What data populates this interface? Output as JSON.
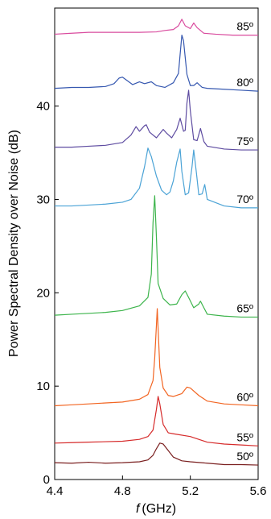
{
  "chart_data": {
    "type": "line",
    "title": "",
    "xlabel_var": "f",
    "xlabel_unit": "(GHz)",
    "ylabel": "Power Spectral Density over Noise (dB)",
    "xlim": [
      4.4,
      5.6
    ],
    "ylim": [
      0,
      50.5
    ],
    "xticks": [
      "4.4",
      "4.8",
      "5.2",
      "5.6"
    ],
    "yticks": [
      "0",
      "10",
      "20",
      "30",
      "40"
    ],
    "grid": false,
    "series": [
      {
        "name": "50º",
        "color": "#7a1f1f",
        "points": [
          [
            4.4,
            1.8
          ],
          [
            4.5,
            1.75
          ],
          [
            4.6,
            1.85
          ],
          [
            4.7,
            1.75
          ],
          [
            4.8,
            1.8
          ],
          [
            4.9,
            1.9
          ],
          [
            4.95,
            2.1
          ],
          [
            4.98,
            2.6
          ],
          [
            5.0,
            3.3
          ],
          [
            5.02,
            3.9
          ],
          [
            5.04,
            3.8
          ],
          [
            5.07,
            3.1
          ],
          [
            5.1,
            2.4
          ],
          [
            5.15,
            2.0
          ],
          [
            5.2,
            1.9
          ],
          [
            5.3,
            1.75
          ],
          [
            5.4,
            1.6
          ],
          [
            5.5,
            1.6
          ],
          [
            5.6,
            1.55
          ]
        ]
      },
      {
        "name": "55º",
        "color": "#d62b2b",
        "points": [
          [
            4.4,
            3.9
          ],
          [
            4.5,
            3.95
          ],
          [
            4.6,
            4.0
          ],
          [
            4.7,
            4.05
          ],
          [
            4.8,
            4.1
          ],
          [
            4.9,
            4.3
          ],
          [
            4.95,
            4.6
          ],
          [
            4.98,
            5.3
          ],
          [
            5.0,
            7.5
          ],
          [
            5.01,
            8.9
          ],
          [
            5.02,
            8.1
          ],
          [
            5.04,
            5.9
          ],
          [
            5.07,
            5.0
          ],
          [
            5.1,
            4.9
          ],
          [
            5.2,
            4.6
          ],
          [
            5.25,
            4.3
          ],
          [
            5.3,
            4.0
          ],
          [
            5.4,
            3.8
          ],
          [
            5.5,
            3.7
          ],
          [
            5.6,
            3.6
          ]
        ]
      },
      {
        "name": "60º",
        "color": "#f26522",
        "points": [
          [
            4.4,
            7.9
          ],
          [
            4.5,
            8.0
          ],
          [
            4.6,
            8.1
          ],
          [
            4.7,
            8.2
          ],
          [
            4.8,
            8.3
          ],
          [
            4.9,
            8.6
          ],
          [
            4.95,
            9.1
          ],
          [
            4.98,
            10.6
          ],
          [
            4.99,
            13.0
          ],
          [
            5.0,
            16.5
          ],
          [
            5.005,
            18.3
          ],
          [
            5.01,
            16.2
          ],
          [
            5.02,
            12.0
          ],
          [
            5.04,
            9.8
          ],
          [
            5.07,
            9.0
          ],
          [
            5.1,
            8.9
          ],
          [
            5.15,
            9.2
          ],
          [
            5.18,
            9.9
          ],
          [
            5.2,
            9.8
          ],
          [
            5.25,
            9.0
          ],
          [
            5.3,
            8.4
          ],
          [
            5.4,
            8.1
          ],
          [
            5.5,
            8.0
          ],
          [
            5.6,
            7.9
          ]
        ]
      },
      {
        "name": "65º",
        "color": "#3cb44b",
        "points": [
          [
            4.4,
            17.6
          ],
          [
            4.5,
            17.7
          ],
          [
            4.6,
            17.8
          ],
          [
            4.7,
            17.9
          ],
          [
            4.8,
            18.1
          ],
          [
            4.9,
            18.6
          ],
          [
            4.95,
            19.5
          ],
          [
            4.97,
            22.0
          ],
          [
            4.98,
            27.5
          ],
          [
            4.99,
            30.4
          ],
          [
            5.0,
            26.0
          ],
          [
            5.01,
            21.0
          ],
          [
            5.04,
            19.4
          ],
          [
            5.08,
            18.7
          ],
          [
            5.12,
            18.8
          ],
          [
            5.15,
            19.8
          ],
          [
            5.17,
            20.2
          ],
          [
            5.19,
            19.5
          ],
          [
            5.22,
            18.4
          ],
          [
            5.25,
            18.8
          ],
          [
            5.26,
            19.1
          ],
          [
            5.28,
            18.4
          ],
          [
            5.3,
            17.7
          ],
          [
            5.4,
            17.5
          ],
          [
            5.5,
            17.4
          ],
          [
            5.6,
            17.4
          ]
        ]
      },
      {
        "name": "70º",
        "color": "#4ba3d6",
        "points": [
          [
            4.4,
            29.3
          ],
          [
            4.5,
            29.3
          ],
          [
            4.6,
            29.4
          ],
          [
            4.7,
            29.5
          ],
          [
            4.8,
            29.7
          ],
          [
            4.85,
            30.0
          ],
          [
            4.9,
            31.2
          ],
          [
            4.93,
            33.5
          ],
          [
            4.95,
            35.5
          ],
          [
            4.97,
            34.6
          ],
          [
            5.0,
            32.5
          ],
          [
            5.03,
            31.0
          ],
          [
            5.06,
            30.5
          ],
          [
            5.08,
            30.8
          ],
          [
            5.1,
            32.0
          ],
          [
            5.12,
            34.0
          ],
          [
            5.14,
            35.4
          ],
          [
            5.15,
            33.0
          ],
          [
            5.17,
            30.5
          ],
          [
            5.19,
            30.7
          ],
          [
            5.21,
            33.5
          ],
          [
            5.22,
            35.3
          ],
          [
            5.235,
            33.0
          ],
          [
            5.25,
            30.5
          ],
          [
            5.27,
            30.6
          ],
          [
            5.285,
            31.6
          ],
          [
            5.3,
            30.0
          ],
          [
            5.4,
            29.3
          ],
          [
            5.5,
            29.1
          ],
          [
            5.6,
            29.1
          ]
        ]
      },
      {
        "name": "75º",
        "color": "#5e4ca1",
        "points": [
          [
            4.4,
            35.6
          ],
          [
            4.5,
            35.6
          ],
          [
            4.6,
            35.7
          ],
          [
            4.7,
            35.8
          ],
          [
            4.8,
            36.1
          ],
          [
            4.85,
            36.9
          ],
          [
            4.88,
            37.8
          ],
          [
            4.9,
            37.3
          ],
          [
            4.93,
            37.9
          ],
          [
            4.94,
            38.0
          ],
          [
            4.96,
            37.2
          ],
          [
            5.0,
            36.6
          ],
          [
            5.04,
            37.5
          ],
          [
            5.06,
            37.1
          ],
          [
            5.09,
            36.6
          ],
          [
            5.12,
            37.5
          ],
          [
            5.14,
            38.7
          ],
          [
            5.16,
            37.3
          ],
          [
            5.17,
            37.4
          ],
          [
            5.18,
            40.3
          ],
          [
            5.19,
            41.7
          ],
          [
            5.2,
            39.5
          ],
          [
            5.22,
            36.4
          ],
          [
            5.24,
            36.3
          ],
          [
            5.26,
            37.6
          ],
          [
            5.28,
            36.2
          ],
          [
            5.3,
            35.7
          ],
          [
            5.4,
            35.4
          ],
          [
            5.5,
            35.3
          ],
          [
            5.6,
            35.3
          ]
        ]
      },
      {
        "name": "80º",
        "color": "#3658b0",
        "points": [
          [
            4.4,
            41.9
          ],
          [
            4.5,
            42.0
          ],
          [
            4.6,
            42.0
          ],
          [
            4.7,
            42.1
          ],
          [
            4.75,
            42.4
          ],
          [
            4.78,
            43.0
          ],
          [
            4.8,
            43.1
          ],
          [
            4.83,
            42.7
          ],
          [
            4.86,
            42.3
          ],
          [
            4.9,
            42.6
          ],
          [
            4.93,
            42.4
          ],
          [
            4.97,
            42.6
          ],
          [
            5.0,
            42.2
          ],
          [
            5.05,
            42.0
          ],
          [
            5.1,
            42.5
          ],
          [
            5.13,
            43.5
          ],
          [
            5.15,
            47.6
          ],
          [
            5.16,
            47.0
          ],
          [
            5.18,
            43.4
          ],
          [
            5.2,
            42.2
          ],
          [
            5.22,
            42.2
          ],
          [
            5.24,
            42.5
          ],
          [
            5.27,
            42.0
          ],
          [
            5.3,
            41.9
          ],
          [
            5.4,
            41.8
          ],
          [
            5.5,
            41.7
          ],
          [
            5.6,
            41.6
          ]
        ]
      },
      {
        "name": "85º",
        "color": "#d94b9e",
        "points": [
          [
            4.4,
            47.7
          ],
          [
            4.5,
            47.8
          ],
          [
            4.6,
            47.9
          ],
          [
            4.7,
            47.9
          ],
          [
            4.8,
            47.9
          ],
          [
            4.9,
            47.9
          ],
          [
            5.0,
            47.95
          ],
          [
            5.05,
            48.1
          ],
          [
            5.1,
            48.2
          ],
          [
            5.13,
            48.6
          ],
          [
            5.15,
            49.3
          ],
          [
            5.17,
            48.6
          ],
          [
            5.2,
            48.3
          ],
          [
            5.22,
            48.9
          ],
          [
            5.24,
            48.4
          ],
          [
            5.28,
            47.8
          ],
          [
            5.35,
            47.7
          ],
          [
            5.45,
            47.6
          ],
          [
            5.6,
            47.6
          ]
        ]
      }
    ]
  }
}
